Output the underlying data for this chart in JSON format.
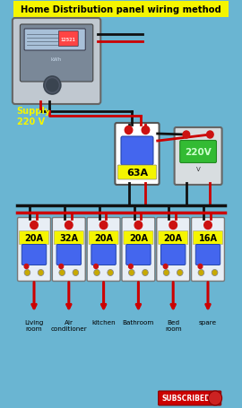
{
  "title": "Home Distribution panel wiring method",
  "background_color": "#6ab5d2",
  "title_bg": "#f5f500",
  "title_color": "black",
  "supply_label": "Supply\n220 V",
  "supply_label_color": "#f5f500",
  "main_breaker_label": "63A",
  "voltage_display": "220V",
  "branch_breakers": [
    {
      "label": "20A",
      "room": "Living\nroom"
    },
    {
      "label": "32A",
      "room": "Air\nconditioner"
    },
    {
      "label": "20A",
      "room": "kitchen"
    },
    {
      "label": "20A",
      "room": "Bathroom"
    },
    {
      "label": "20A",
      "room": "Bed\nroom"
    },
    {
      "label": "16A",
      "room": "spare"
    }
  ],
  "wire_red": "#cc0000",
  "wire_black": "#111111",
  "label_bg": "#f5f500",
  "subscribed_bg": "#cc0000",
  "subscribed_text": "SUBSCRIBED"
}
